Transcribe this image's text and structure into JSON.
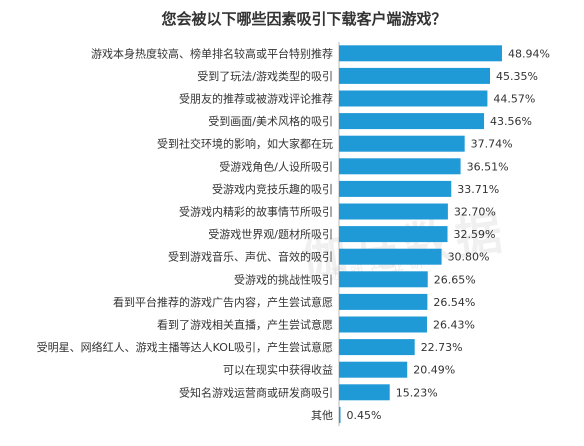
{
  "title": "您会被以下哪些因素吸引下载客户端游戏？",
  "watermark": "伽马数据",
  "watermark_sub": "游戏产业研",
  "colors": {
    "bar": "#1f9ad6",
    "text": "#333333",
    "axis": "#bbbbbb"
  },
  "chart_data": {
    "type": "bar",
    "orientation": "horizontal",
    "title": "您会被以下哪些因素吸引下载客户端游戏？",
    "xlabel": "",
    "ylabel": "",
    "unit": "%",
    "xlim": [
      0,
      60
    ],
    "grid": false,
    "categories": [
      "游戏本身热度较高、榜单排名较高或平台特别推荐",
      "受到了玩法/游戏类型的吸引",
      "受朋友的推荐或被游戏评论推荐",
      "受到画面/美术风格的吸引",
      "受到社交环境的影响，如大家都在玩",
      "受游戏角色/人设所吸引",
      "受游戏内竞技乐趣的吸引",
      "受游戏内精彩的故事情节所吸引",
      "受游戏世界观/题材所吸引",
      "受到游戏音乐、声优、音效的吸引",
      "受游戏的挑战性吸引",
      "看到平台推荐的游戏广告内容，产生尝试意愿",
      "看到了游戏相关直播，产生尝试意愿",
      "受明星、网络红人、游戏主播等达人KOL吸引，产生尝试意愿",
      "可以在现实中获得收益",
      "受知名游戏运营商或研发商吸引",
      "其他"
    ],
    "values": [
      48.94,
      45.35,
      44.57,
      43.56,
      37.74,
      36.51,
      33.71,
      32.7,
      32.59,
      30.8,
      26.65,
      26.54,
      26.43,
      22.73,
      20.49,
      15.23,
      0.45
    ],
    "value_labels": [
      "48.94%",
      "45.35%",
      "44.57%",
      "43.56%",
      "37.74%",
      "36.51%",
      "33.71%",
      "32.70%",
      "32.59%",
      "30.80%",
      "26.65%",
      "26.54%",
      "26.43%",
      "22.73%",
      "20.49%",
      "15.23%",
      "0.45%"
    ]
  }
}
